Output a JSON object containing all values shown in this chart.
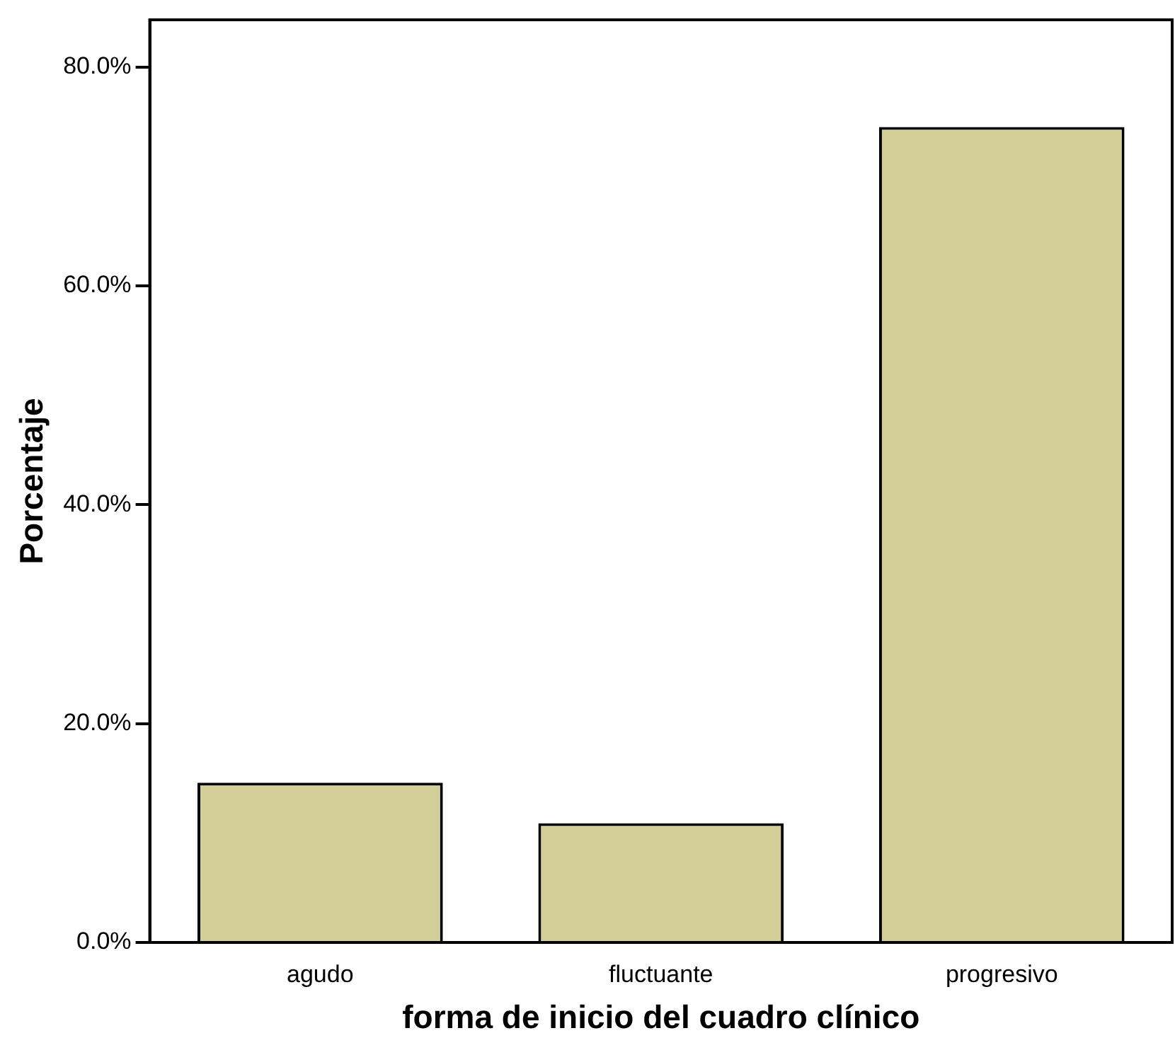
{
  "chart_data": {
    "type": "bar",
    "xlabel": "forma de inicio del cuadro clínico",
    "ylabel": "Porcentaje",
    "categories": [
      "agudo",
      "fluctuante",
      "progresivo"
    ],
    "values": [
      14.6,
      10.9,
      74.5
    ],
    "color": "#d3cd98",
    "ylim": [
      0,
      84.3
    ],
    "yticks": [
      {
        "value": 0,
        "label": "0.0%"
      },
      {
        "value": 20,
        "label": "20.0%"
      },
      {
        "value": 40,
        "label": "40.0%"
      },
      {
        "value": 60,
        "label": "60.0%"
      },
      {
        "value": 80,
        "label": "80.0%"
      }
    ],
    "grid": false,
    "legend": false
  }
}
